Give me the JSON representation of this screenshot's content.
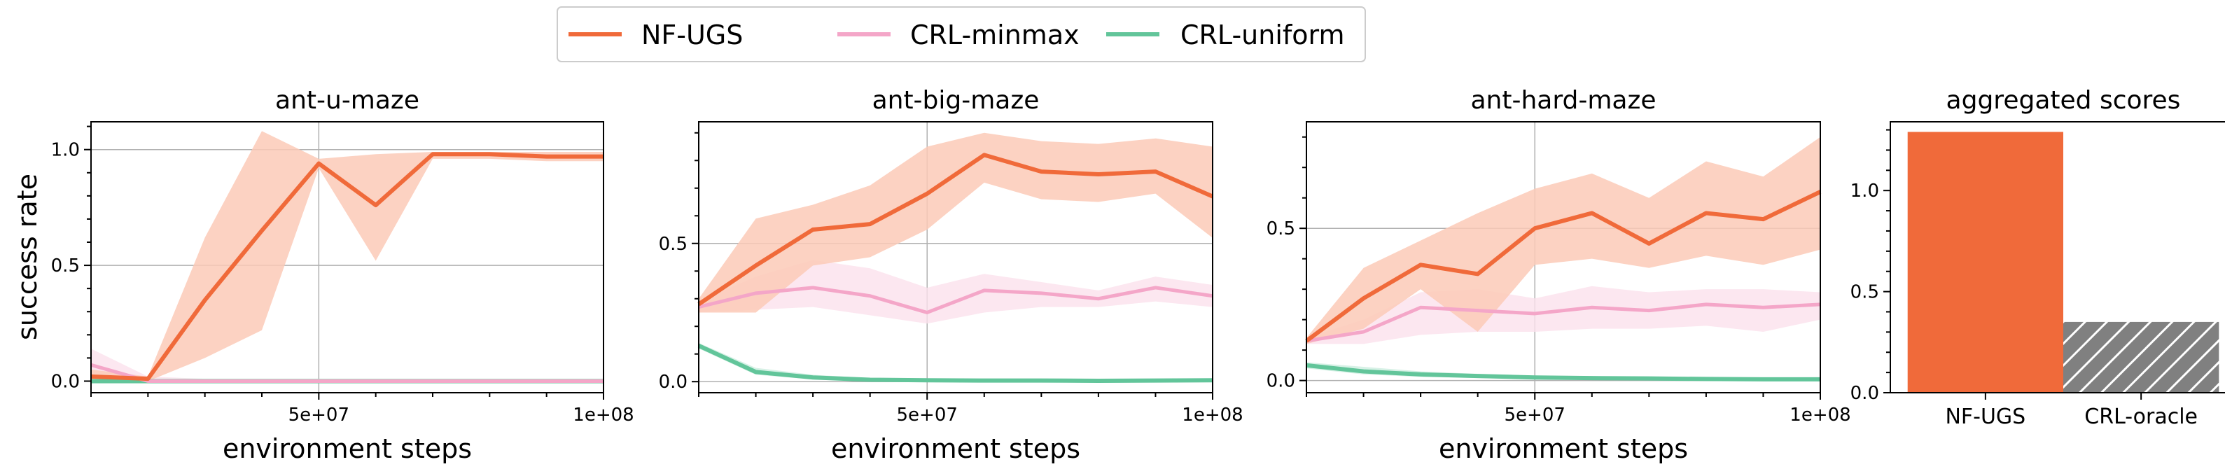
{
  "legend": [
    {
      "label": "NF-UGS",
      "color": "#f06a3a"
    },
    {
      "label": "CRL-minmax",
      "color": "#f4a6c8"
    },
    {
      "label": "CRL-uniform",
      "color": "#62c59a"
    }
  ],
  "colors": {
    "nfugs": "#f06a3a",
    "nfugs_band": "#fbcab7",
    "minmax": "#f4a6c8",
    "minmax_band": "#fbe1ec",
    "uniform": "#62c59a",
    "uniform_band": "#cdeee0",
    "oracle": "#808080",
    "grid": "#b0b0b0"
  },
  "y_axis_label": "success rate",
  "x_axis_label": "environment steps",
  "chart_data": [
    {
      "type": "line",
      "title": "ant-u-maze",
      "xlabel": "environment steps",
      "ylabel": "success rate",
      "xlim": [
        10000000,
        100000000
      ],
      "ylim": [
        -0.05,
        1.12
      ],
      "x_ticks": [
        {
          "value": 50000000,
          "label": "5e+07"
        },
        {
          "value": 100000000,
          "label": "1e+08"
        }
      ],
      "y_ticks": [
        {
          "value": 0.0,
          "label": "0.0"
        },
        {
          "value": 0.5,
          "label": "0.5"
        },
        {
          "value": 1.0,
          "label": "1.0"
        }
      ],
      "x": [
        10000000,
        20000000,
        30000000,
        40000000,
        50000000,
        60000000,
        70000000,
        80000000,
        90000000,
        100000000
      ],
      "series": [
        {
          "name": "CRL-uniform",
          "values": [
            0.0,
            0.0,
            0.0,
            0.0,
            0.0,
            0.0,
            0.0,
            0.0,
            0.0,
            0.0
          ],
          "lower": [
            -0.01,
            -0.01,
            -0.01,
            -0.01,
            -0.01,
            -0.01,
            -0.01,
            -0.01,
            -0.01,
            -0.01
          ],
          "upper": [
            0.02,
            0.01,
            0.01,
            0.01,
            0.01,
            0.01,
            0.01,
            0.01,
            0.01,
            0.01
          ]
        },
        {
          "name": "CRL-minmax",
          "values": [
            0.07,
            0.0,
            0.0,
            0.0,
            0.0,
            0.0,
            0.0,
            0.0,
            0.0,
            0.0
          ],
          "lower": [
            0.0,
            0.0,
            0.0,
            0.0,
            0.0,
            0.0,
            0.0,
            0.0,
            0.0,
            0.0
          ],
          "upper": [
            0.14,
            0.02,
            0.01,
            0.01,
            0.01,
            0.01,
            0.01,
            0.01,
            0.01,
            0.01
          ]
        },
        {
          "name": "NF-UGS",
          "values": [
            0.02,
            0.01,
            0.35,
            0.65,
            0.94,
            0.76,
            0.98,
            0.98,
            0.97,
            0.97
          ],
          "lower": [
            0.0,
            0.0,
            0.1,
            0.22,
            0.92,
            0.52,
            0.96,
            0.96,
            0.95,
            0.95
          ],
          "upper": [
            0.05,
            0.02,
            0.62,
            1.08,
            0.96,
            0.98,
            0.99,
            0.99,
            0.99,
            0.99
          ]
        }
      ]
    },
    {
      "type": "line",
      "title": "ant-big-maze",
      "xlabel": "environment steps",
      "ylabel": "",
      "xlim": [
        10000000,
        100000000
      ],
      "ylim": [
        -0.04,
        0.94
      ],
      "x_ticks": [
        {
          "value": 50000000,
          "label": "5e+07"
        },
        {
          "value": 100000000,
          "label": "1e+08"
        }
      ],
      "y_ticks": [
        {
          "value": 0.0,
          "label": "0.0"
        },
        {
          "value": 0.5,
          "label": "0.5"
        }
      ],
      "x": [
        10000000,
        20000000,
        30000000,
        40000000,
        50000000,
        60000000,
        70000000,
        80000000,
        90000000,
        100000000
      ],
      "series": [
        {
          "name": "CRL-uniform",
          "values": [
            0.13,
            0.035,
            0.015,
            0.007,
            0.005,
            0.004,
            0.004,
            0.003,
            0.004,
            0.005
          ],
          "lower": [
            0.12,
            0.025,
            0.008,
            0.002,
            0.0,
            0.0,
            0.0,
            0.0,
            0.0,
            0.0
          ],
          "upper": [
            0.14,
            0.05,
            0.025,
            0.013,
            0.01,
            0.009,
            0.009,
            0.008,
            0.009,
            0.01
          ]
        },
        {
          "name": "CRL-minmax",
          "values": [
            0.27,
            0.32,
            0.34,
            0.31,
            0.25,
            0.33,
            0.32,
            0.3,
            0.34,
            0.31
          ],
          "lower": [
            0.25,
            0.26,
            0.27,
            0.24,
            0.21,
            0.25,
            0.27,
            0.27,
            0.29,
            0.27
          ],
          "upper": [
            0.29,
            0.38,
            0.44,
            0.41,
            0.34,
            0.39,
            0.36,
            0.33,
            0.38,
            0.35
          ]
        },
        {
          "name": "NF-UGS",
          "values": [
            0.28,
            0.42,
            0.55,
            0.57,
            0.68,
            0.82,
            0.76,
            0.75,
            0.76,
            0.67
          ],
          "lower": [
            0.25,
            0.25,
            0.42,
            0.45,
            0.55,
            0.72,
            0.66,
            0.65,
            0.68,
            0.52
          ],
          "upper": [
            0.3,
            0.59,
            0.64,
            0.71,
            0.85,
            0.9,
            0.87,
            0.86,
            0.88,
            0.85
          ]
        }
      ]
    },
    {
      "type": "line",
      "title": "ant-hard-maze",
      "xlabel": "environment steps",
      "ylabel": "",
      "xlim": [
        10000000,
        100000000
      ],
      "ylim": [
        -0.04,
        0.85
      ],
      "x_ticks": [
        {
          "value": 50000000,
          "label": "5e+07"
        },
        {
          "value": 100000000,
          "label": "1e+08"
        }
      ],
      "y_ticks": [
        {
          "value": 0.0,
          "label": "0.0"
        },
        {
          "value": 0.5,
          "label": "0.5"
        }
      ],
      "x": [
        10000000,
        20000000,
        30000000,
        40000000,
        50000000,
        60000000,
        70000000,
        80000000,
        90000000,
        100000000
      ],
      "series": [
        {
          "name": "CRL-uniform",
          "values": [
            0.05,
            0.03,
            0.02,
            0.015,
            0.01,
            0.008,
            0.007,
            0.005,
            0.004,
            0.004
          ],
          "lower": [
            0.04,
            0.02,
            0.012,
            0.008,
            0.004,
            0.002,
            0.002,
            0.0,
            0.0,
            0.0
          ],
          "upper": [
            0.06,
            0.045,
            0.03,
            0.022,
            0.016,
            0.014,
            0.012,
            0.01,
            0.01,
            0.01
          ]
        },
        {
          "name": "CRL-minmax",
          "values": [
            0.13,
            0.16,
            0.24,
            0.23,
            0.22,
            0.24,
            0.23,
            0.25,
            0.24,
            0.25
          ],
          "lower": [
            0.12,
            0.12,
            0.15,
            0.16,
            0.16,
            0.17,
            0.17,
            0.18,
            0.16,
            0.2
          ],
          "upper": [
            0.14,
            0.2,
            0.29,
            0.3,
            0.27,
            0.31,
            0.29,
            0.3,
            0.3,
            0.29
          ]
        },
        {
          "name": "NF-UGS",
          "values": [
            0.13,
            0.27,
            0.38,
            0.35,
            0.5,
            0.55,
            0.45,
            0.55,
            0.53,
            0.62
          ],
          "lower": [
            0.12,
            0.17,
            0.3,
            0.16,
            0.38,
            0.4,
            0.37,
            0.41,
            0.38,
            0.43
          ],
          "upper": [
            0.14,
            0.37,
            0.46,
            0.55,
            0.63,
            0.68,
            0.6,
            0.72,
            0.67,
            0.8
          ]
        }
      ]
    },
    {
      "type": "bar",
      "title": "aggregated scores",
      "xlabel": "",
      "ylabel": "",
      "ylim": [
        0,
        1.34
      ],
      "y_ticks": [
        {
          "value": 0.0,
          "label": "0.0"
        },
        {
          "value": 0.5,
          "label": "0.5"
        },
        {
          "value": 1.0,
          "label": "1.0"
        }
      ],
      "categories": [
        "NF-UGS",
        "CRL-oracle"
      ],
      "values": [
        1.29,
        0.35
      ],
      "fills": [
        "solid",
        "hatched"
      ]
    }
  ]
}
